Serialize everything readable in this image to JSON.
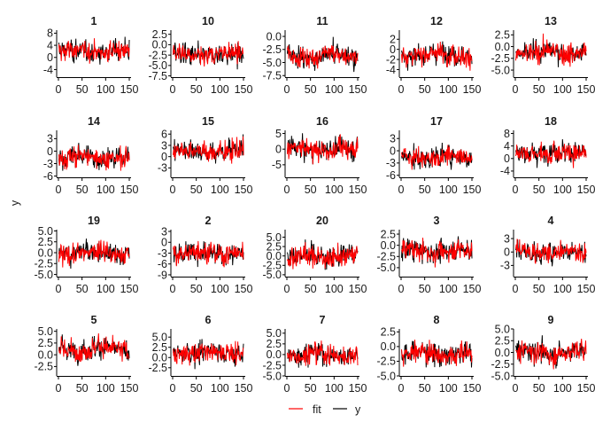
{
  "chart_data": {
    "type": "line",
    "layout": "faceted 4 rows x 5 columns",
    "ylabel": "y",
    "xlabel": "",
    "x_range": [
      1,
      150
    ],
    "x_ticks": [
      0,
      50,
      100,
      150
    ],
    "grid": false,
    "legend": {
      "placement": "bottom",
      "entries": [
        {
          "name": "fit",
          "color": "#ff0000"
        },
        {
          "name": "y",
          "color": "#000000"
        }
      ]
    },
    "panels": [
      {
        "title": "1",
        "ylim": [
          -6.5,
          9
        ],
        "y_ticks": [
          "-4",
          "0",
          "4",
          "8"
        ]
      },
      {
        "title": "10",
        "ylim": [
          -7.8,
          3.5
        ],
        "y_ticks": [
          "-7.5",
          "-5.0",
          "-2.5",
          "0.0",
          "2.5"
        ]
      },
      {
        "title": "11",
        "ylim": [
          -7.8,
          1.2
        ],
        "y_ticks": [
          "-7.5",
          "-5.0",
          "-2.5",
          "0.0"
        ]
      },
      {
        "title": "12",
        "ylim": [
          -5.5,
          3.8
        ],
        "y_ticks": [
          "-4",
          "-2",
          "0",
          "2"
        ]
      },
      {
        "title": "13",
        "ylim": [
          -6.5,
          3.5
        ],
        "y_ticks": [
          "-5.0",
          "-2.5",
          "0.0",
          "2.5"
        ]
      },
      {
        "title": "14",
        "ylim": [
          -6.3,
          5
        ],
        "y_ticks": [
          "-6",
          "-3",
          "0",
          "3"
        ]
      },
      {
        "title": "15",
        "ylim": [
          -5.5,
          7
        ],
        "y_ticks": [
          "-3",
          "0",
          "3",
          "6"
        ]
      },
      {
        "title": "16",
        "ylim": [
          -9,
          6
        ],
        "y_ticks": [
          "-5",
          "0",
          "5"
        ]
      },
      {
        "title": "17",
        "ylim": [
          -6.5,
          5
        ],
        "y_ticks": [
          "-6",
          "-3",
          "0",
          "3"
        ]
      },
      {
        "title": "18",
        "ylim": [
          -6,
          9
        ],
        "y_ticks": [
          "-4",
          "0",
          "4",
          "8"
        ]
      },
      {
        "title": "19",
        "ylim": [
          -5.5,
          5.3
        ],
        "y_ticks": [
          "-5.0",
          "-2.5",
          "0.0",
          "2.5",
          "5.0"
        ]
      },
      {
        "title": "2",
        "ylim": [
          -9.5,
          3.5
        ],
        "y_ticks": [
          "-9",
          "-6",
          "-3",
          "0",
          "3"
        ]
      },
      {
        "title": "20",
        "ylim": [
          -5.5,
          7
        ],
        "y_ticks": [
          "-5.0",
          "-2.5",
          "0.0",
          "2.5",
          "5.0"
        ]
      },
      {
        "title": "3",
        "ylim": [
          -7,
          3.5
        ],
        "y_ticks": [
          "-5.0",
          "-2.5",
          "0.0",
          "2.5"
        ]
      },
      {
        "title": "4",
        "ylim": [
          -5.5,
          5
        ],
        "y_ticks": [
          "-3",
          "0",
          "3"
        ]
      },
      {
        "title": "5",
        "ylim": [
          -4.5,
          5.5
        ],
        "y_ticks": [
          "-2.5",
          "0.0",
          "2.5",
          "5.0"
        ]
      },
      {
        "title": "6",
        "ylim": [
          -4.5,
          7
        ],
        "y_ticks": [
          "-2.5",
          "0.0",
          "2.5",
          "5.0"
        ]
      },
      {
        "title": "7",
        "ylim": [
          -5,
          6
        ],
        "y_ticks": [
          "-5.0",
          "-2.5",
          "0.0",
          "2.5",
          "5.0"
        ]
      },
      {
        "title": "8",
        "ylim": [
          -5,
          3
        ],
        "y_ticks": [
          "-5.0",
          "-2.5",
          "0.0",
          "2.5"
        ]
      },
      {
        "title": "9",
        "ylim": [
          -5,
          5
        ],
        "y_ticks": [
          "-5.0",
          "-2.5",
          "0.0",
          "2.5",
          "5.0"
        ]
      }
    ]
  }
}
